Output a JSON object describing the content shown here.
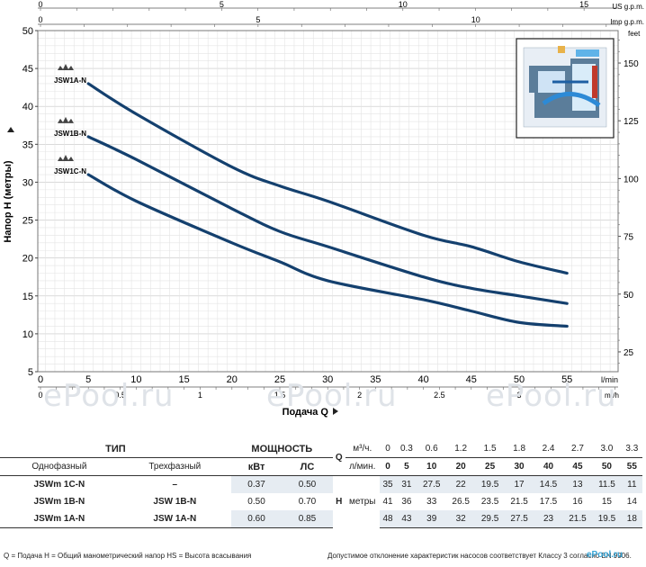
{
  "chart_data": {
    "type": "line",
    "ylabel": "Напор H (метры)",
    "xlabel": "Подача Q",
    "y_ticks": [
      "50",
      "45",
      "40",
      "35",
      "30",
      "25",
      "20",
      "15",
      "10",
      "5"
    ],
    "feet_unit": "feet",
    "feet_ticks": [
      "150",
      "125",
      "100",
      "75",
      "50",
      "25"
    ],
    "lmin_unit": "l/min",
    "lmin_ticks": [
      "0",
      "5",
      "10",
      "15",
      "20",
      "25",
      "30",
      "35",
      "40",
      "45",
      "50",
      "55"
    ],
    "m3h_unit": "m³/h",
    "m3h_ticks": [
      "0",
      "0.5",
      "1",
      "1.5",
      "2",
      "2.5",
      "3"
    ],
    "us_unit": "US g.p.m.",
    "us_ticks": [
      "0",
      "5",
      "10",
      "15"
    ],
    "imp_unit": "Imp g.p.m.",
    "imp_ticks": [
      "0",
      "5",
      "10"
    ],
    "ylim": [
      5,
      50
    ],
    "xlim": [
      0,
      60
    ],
    "grid": true,
    "series": [
      {
        "name": "JSW1A-N",
        "x": [
          5,
          10,
          20,
          25,
          30,
          40,
          45,
          50,
          55
        ],
        "values": [
          43,
          39,
          32,
          29.5,
          27.5,
          23,
          21.5,
          19.5,
          18
        ],
        "color": "#14406e"
      },
      {
        "name": "JSW1B-N",
        "x": [
          5,
          10,
          20,
          25,
          30,
          40,
          45,
          50,
          55
        ],
        "values": [
          36,
          33,
          26.5,
          23.5,
          21.5,
          17.5,
          16,
          15,
          14
        ],
        "color": "#14406e"
      },
      {
        "name": "JSW1C-N",
        "x": [
          5,
          10,
          20,
          25,
          30,
          40,
          45,
          50,
          55
        ],
        "values": [
          31,
          27.5,
          22,
          19.5,
          17,
          14.5,
          13,
          11.5,
          11
        ],
        "color": "#14406e"
      }
    ]
  },
  "watermark": "ePool.ru",
  "table": {
    "header": {
      "type": "ТИП",
      "power": "МОЩНОСТЬ",
      "q_letter": "Q",
      "m3h": "м³/ч.",
      "lmin": "л/мин.",
      "single": "Однофазный",
      "three": "Трехфазный",
      "kw": "кВт",
      "hp": "ЛС",
      "h_letter": "H",
      "meters": "метры"
    },
    "q_m3h": [
      "0",
      "0.3",
      "0.6",
      "1.2",
      "1.5",
      "1.8",
      "2.4",
      "2.7",
      "3.0",
      "3.3"
    ],
    "q_lmin": [
      "0",
      "5",
      "10",
      "20",
      "25",
      "30",
      "40",
      "45",
      "50",
      "55"
    ],
    "rows": [
      {
        "single": "JSWm 1C-N",
        "three": "–",
        "kw": "0.37",
        "hp": "0.50",
        "h": [
          "35",
          "31",
          "27.5",
          "22",
          "19.5",
          "17",
          "14.5",
          "13",
          "11.5",
          "11"
        ]
      },
      {
        "single": "JSWm 1B-N",
        "three": "JSW 1B-N",
        "kw": "0.50",
        "hp": "0.70",
        "h": [
          "41",
          "36",
          "33",
          "26.5",
          "23.5",
          "21.5",
          "17.5",
          "16",
          "15",
          "14"
        ]
      },
      {
        "single": "JSWm 1A-N",
        "three": "JSW 1A-N",
        "kw": "0.60",
        "hp": "0.85",
        "h": [
          "48",
          "43",
          "39",
          "32",
          "29.5",
          "27.5",
          "23",
          "21.5",
          "19.5",
          "18"
        ]
      }
    ],
    "footnote_left": "Q = Подача  H = Общий манометрический напор  HS = Высота всасывания",
    "footnote_right": "Допустимое отклонение характеристик насосов соответствует Классу 3 согласно EN 9906.",
    "brand": "ePool.ru"
  }
}
